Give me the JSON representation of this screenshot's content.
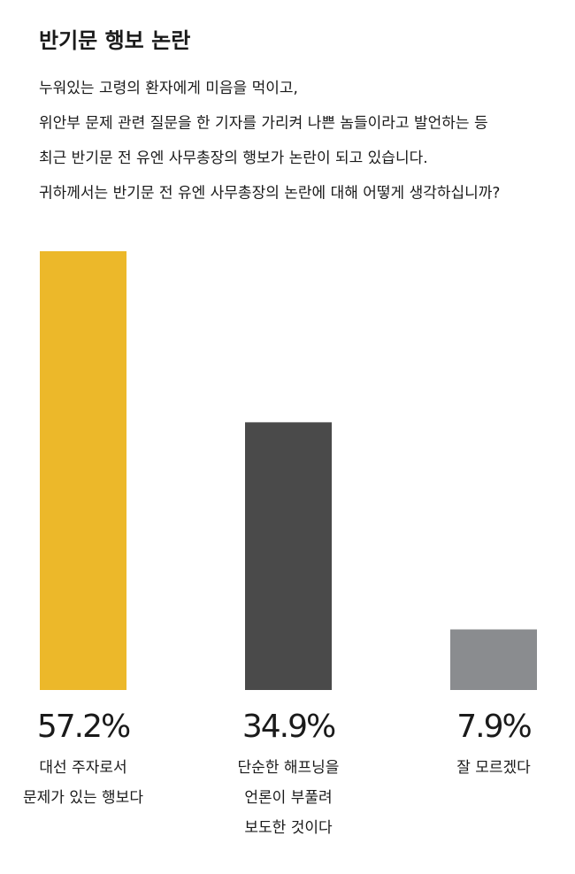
{
  "chart_data": {
    "type": "bar",
    "title": "반기문 행보 논란",
    "subtitle": [
      "누워있는 고령의 환자에게 미음을 먹이고,",
      "위안부 문제 관련 질문을 한 기자를 가리켜 나쁜 놈들이라고 발언하는 등",
      "최근 반기문 전 유엔 사무총장의 행보가 논란이 되고 있습니다.",
      "귀하께서는 반기문 전 유엔 사무총장의 논란에 대해 어떻게 생각하십니까?"
    ],
    "categories": [
      [
        "대선 주자로서",
        "문제가 있는 행보다"
      ],
      [
        "단순한 해프닝을",
        "언론이 부풀려",
        "보도한 것이다"
      ],
      [
        "잘 모르겠다"
      ]
    ],
    "values": [
      57.2,
      34.9,
      7.9
    ],
    "value_labels": [
      "57.2%",
      "34.9%",
      "7.9%"
    ],
    "colors": [
      "#ecb82a",
      "#4a4a4a",
      "#8a8c8f"
    ]
  }
}
